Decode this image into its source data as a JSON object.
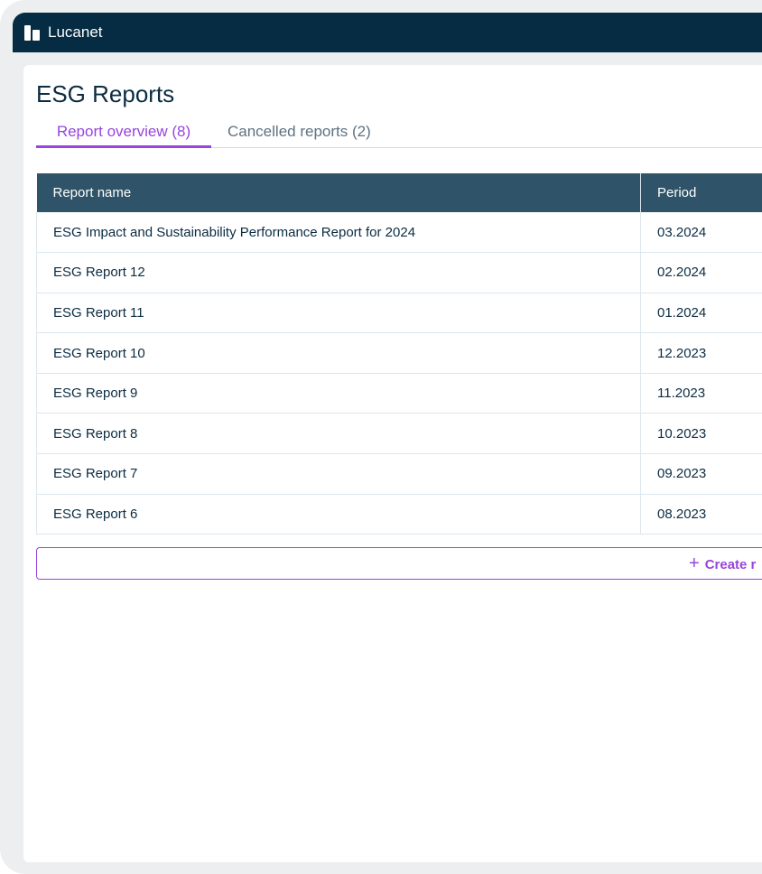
{
  "app": {
    "brand": "Lucanet"
  },
  "page": {
    "title": "ESG Reports"
  },
  "tabs": [
    {
      "label": "Report overview (8)",
      "active": true
    },
    {
      "label": "Cancelled reports (2)",
      "active": false
    }
  ],
  "table": {
    "columns": [
      "Report name",
      "Period"
    ],
    "rows": [
      [
        "ESG Impact and Sustainability Performance Report for 2024",
        "03.2024"
      ],
      [
        "ESG Report 12",
        "02.2024"
      ],
      [
        "ESG Report 11",
        "01.2024"
      ],
      [
        "ESG Report 10",
        "12.2023"
      ],
      [
        "ESG Report 9",
        "11.2023"
      ],
      [
        "ESG Report 8",
        "10.2023"
      ],
      [
        "ESG Report 7",
        "09.2023"
      ],
      [
        "ESG Report 6",
        "08.2023"
      ]
    ]
  },
  "create_button": {
    "icon": "plus-icon",
    "label": "Create r"
  },
  "colors": {
    "accent": "#9944dd",
    "header": "#052c42",
    "table_header": "#2f5368"
  }
}
